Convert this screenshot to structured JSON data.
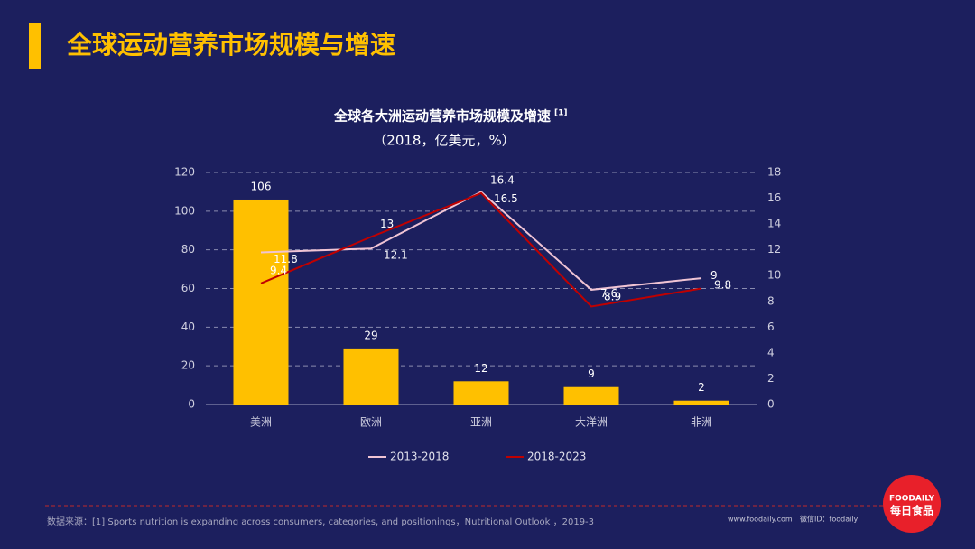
{
  "header": {
    "title": "全球运动营养市场规模与增速"
  },
  "chart_data": {
    "type": "bar",
    "title": "全球各大洲运动营养市场规模及增速",
    "title_note": "[1]",
    "subtitle": "（2018，亿美元，%）",
    "categories": [
      "美洲",
      "欧洲",
      "亚洲",
      "大洋洲",
      "非洲"
    ],
    "values": [
      106,
      29,
      12,
      9,
      2
    ],
    "color": "#ffc000",
    "ylim": [
      0,
      120
    ],
    "yticks": [
      0,
      20,
      40,
      60,
      80,
      100,
      120
    ],
    "y2lim": [
      0,
      18
    ],
    "y2ticks": [
      0,
      2,
      4,
      6,
      8,
      10,
      12,
      14,
      16,
      18
    ],
    "grid": true,
    "series": [
      {
        "name": "2013-2018",
        "color": "#f0c4d4",
        "axis": "y2",
        "values": [
          11.8,
          12.1,
          16.5,
          8.9,
          9.8
        ]
      },
      {
        "name": "2018-2023",
        "color": "#c00000",
        "axis": "y2",
        "values": [
          9.4,
          13,
          16.4,
          7.6,
          9
        ]
      }
    ],
    "legend": "bottom"
  },
  "footer": {
    "source": "数据来源：[1] Sports nutrition is expanding across consumers, categories, and positionings，Nutritional Outlook ，2019-3",
    "website": "www.foodaily.com",
    "wechat": "微信ID：foodaily",
    "logo_en": "FOODAILY",
    "logo_cn": "每日食品"
  }
}
